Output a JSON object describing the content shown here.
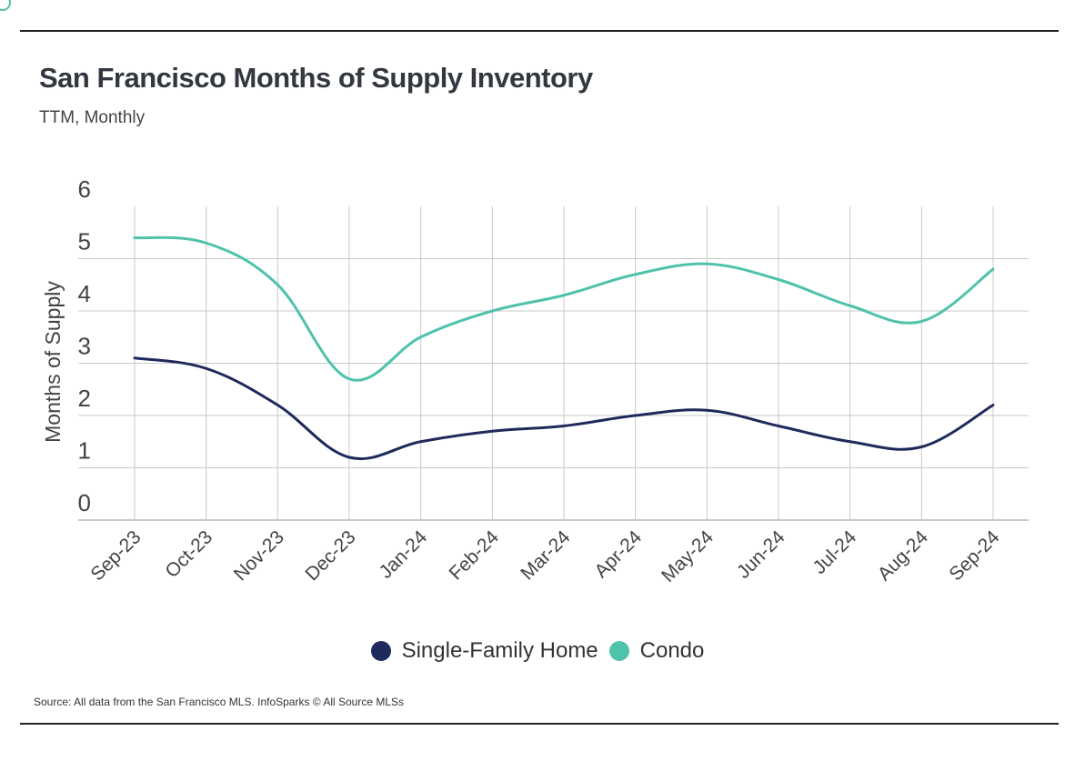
{
  "title": "San Francisco Months of Supply Inventory",
  "subtitle": "TTM, Monthly",
  "source": "Source:  All data from the San Francisco MLS. InfoSparks © All Source MLSs",
  "colors": {
    "single_family": "#1f2a5c",
    "condo": "#4fc2ab",
    "grid": "#c8c8c8",
    "rule": "#222222"
  },
  "legend": {
    "single_family": "Single-Family Home",
    "condo": "Condo"
  },
  "chart_data": {
    "type": "line",
    "title": "San Francisco Months of Supply Inventory",
    "subtitle": "TTM, Monthly",
    "xlabel": "",
    "ylabel": "Months of Supply",
    "ylim": [
      0,
      6
    ],
    "yticks": [
      0,
      1,
      2,
      3,
      4,
      5,
      6
    ],
    "grid": true,
    "legend_position": "bottom-center",
    "categories": [
      "Sep-23",
      "Oct-23",
      "Nov-23",
      "Dec-23",
      "Jan-24",
      "Feb-24",
      "Mar-24",
      "Apr-24",
      "May-24",
      "Jun-24",
      "Jul-24",
      "Aug-24",
      "Sep-24"
    ],
    "series": [
      {
        "name": "Single-Family Home",
        "color": "#1f2a5c",
        "values": [
          3.1,
          2.9,
          2.2,
          1.2,
          1.5,
          1.7,
          1.8,
          2.0,
          2.1,
          1.8,
          1.5,
          1.4,
          2.2
        ]
      },
      {
        "name": "Condo",
        "color": "#4fc2ab",
        "values": [
          5.4,
          5.3,
          4.5,
          2.7,
          3.5,
          4.0,
          4.3,
          4.7,
          4.9,
          4.6,
          4.1,
          3.8,
          4.8
        ]
      }
    ]
  }
}
